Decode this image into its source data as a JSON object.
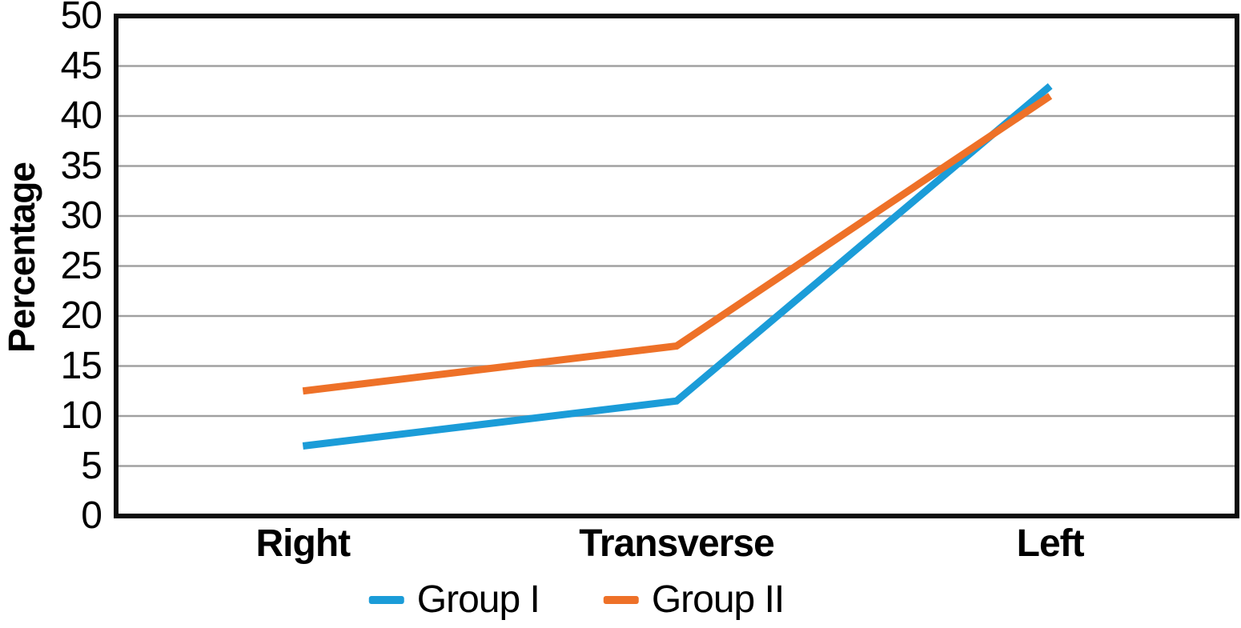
{
  "chart_data": {
    "type": "line",
    "title": "",
    "xlabel": "",
    "ylabel": "Percentage",
    "categories": [
      "Right",
      "Transverse",
      "Left"
    ],
    "series": [
      {
        "name": "Group I",
        "color": "#1b9cd8",
        "values": [
          7,
          11.5,
          43
        ]
      },
      {
        "name": "Group II",
        "color": "#ee7128",
        "values": [
          12.5,
          17,
          42
        ]
      }
    ],
    "ylim": [
      0,
      50
    ],
    "ytick_step": 5,
    "yticks": [
      0,
      5,
      10,
      15,
      20,
      25,
      30,
      35,
      40,
      45,
      50
    ],
    "grid": "horizontal",
    "legend_position": "bottom",
    "gridline_color": "#a0a0a0",
    "axis_color": "#0d0d0d",
    "text_color": "#000000",
    "line_width": 9
  }
}
